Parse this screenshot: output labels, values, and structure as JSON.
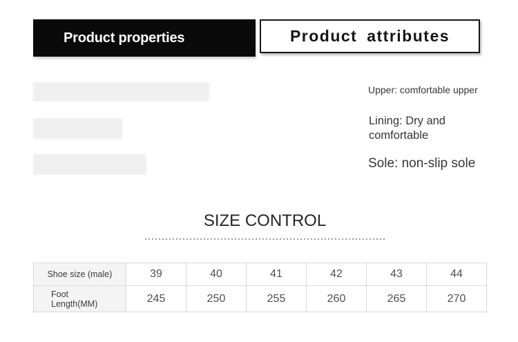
{
  "header": {
    "properties_tab": "Product properties",
    "attributes_tab": "Product attributes"
  },
  "attributes": {
    "upper": "Upper: comfortable upper",
    "lining": "Lining: Dry and comfortable",
    "sole": "Sole: non-slip sole"
  },
  "size_section": {
    "title": "SIZE CONTROL"
  },
  "size_table": {
    "rows": [
      {
        "label": "Shoe size (male)",
        "values": [
          "39",
          "40",
          "41",
          "42",
          "43",
          "44"
        ]
      },
      {
        "label": "Foot\nLength(MM)",
        "values": [
          "245",
          "250",
          "255",
          "260",
          "265",
          "270"
        ]
      }
    ]
  },
  "colors": {
    "tab_black_bg": "#0a0a0a",
    "tab_border": "#141414",
    "placeholder_bar": "#efefef",
    "table_header_bg": "#f4f4f4",
    "table_border": "#d8d8d8",
    "dotted_line": "#9c9c9c",
    "text_dark": "#373737"
  }
}
